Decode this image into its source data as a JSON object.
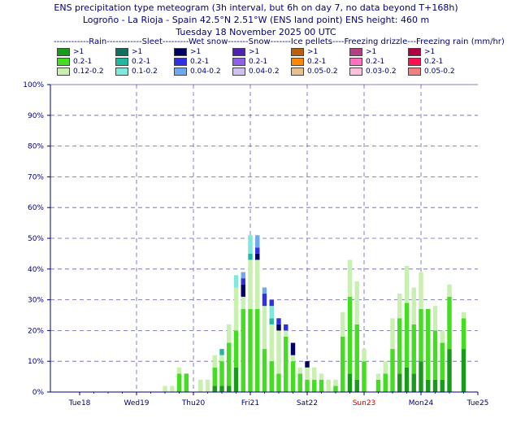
{
  "titles": {
    "line1": "ENS precipitation type meteogram (3h interval, but 6h on day 7, no data beyond T+168h)",
    "line2": "Logroño - La Rioja - Spain 42.5°N 2.51°W (ENS land point) ENS height: 460 m",
    "line3": "Tuesday 18 November 2025 00 UTC"
  },
  "legend": {
    "header": "------------Rain------------Sleet---------Wet snow-------Snow-------Ice pellets----Freezing drizzle---Freezing rain (mm/hr)",
    "columns": [
      {
        "name": "rain",
        "items": [
          {
            "label": ">1",
            "color": "#1a9a1a"
          },
          {
            "label": "0.2-1",
            "color": "#44dd22"
          },
          {
            "label": "0.12-0.2",
            "color": "#c8f0b0"
          }
        ]
      },
      {
        "name": "sleet",
        "items": [
          {
            "label": ">1",
            "color": "#0f7060"
          },
          {
            "label": "0.2-1",
            "color": "#22b8a0"
          },
          {
            "label": "0.1-0.2",
            "color": "#80e8d8"
          }
        ]
      },
      {
        "name": "wet-snow",
        "items": [
          {
            "label": ">1",
            "color": "#000060"
          },
          {
            "label": "0.2-1",
            "color": "#3030e0"
          },
          {
            "label": "0.04-0.2",
            "color": "#70a8f0"
          }
        ]
      },
      {
        "name": "snow",
        "items": [
          {
            "label": ">1",
            "color": "#5020b0"
          },
          {
            "label": "0.2-1",
            "color": "#9060e8"
          },
          {
            "label": "0.04-0.2",
            "color": "#d0c0f0"
          }
        ]
      },
      {
        "name": "ice-pellets",
        "items": [
          {
            "label": ">1",
            "color": "#b86010"
          },
          {
            "label": "0.2-1",
            "color": "#ff8800"
          },
          {
            "label": "0.05-0.2",
            "color": "#e8c090"
          }
        ]
      },
      {
        "name": "freezing-drizzle",
        "items": [
          {
            "label": ">1",
            "color": "#b04080"
          },
          {
            "label": "0.2-1",
            "color": "#ff70c0"
          },
          {
            "label": "0.03-0.2",
            "color": "#ffc0e0"
          }
        ]
      },
      {
        "name": "freezing-rain",
        "items": [
          {
            "label": ">1",
            "color": "#b00040"
          },
          {
            "label": "0.2-1",
            "color": "#ff1050"
          },
          {
            "label": "0.05-0.2",
            "color": "#f08080"
          }
        ]
      }
    ]
  },
  "chart_data": {
    "type": "bar",
    "stacked": true,
    "ylim": [
      0,
      100
    ],
    "yticks": [
      "0%",
      "10%",
      "20%",
      "30%",
      "40%",
      "50%",
      "60%",
      "70%",
      "80%",
      "90%",
      "100%"
    ],
    "xlim_hours": [
      0,
      168
    ],
    "day_labels": [
      {
        "label": "Tue18",
        "hour": 0,
        "sunday": false
      },
      {
        "label": "Wed19",
        "hour": 24,
        "sunday": false
      },
      {
        "label": "Thu20",
        "hour": 48,
        "sunday": false
      },
      {
        "label": "Fri21",
        "hour": 72,
        "sunday": false
      },
      {
        "label": "Sat22",
        "hour": 96,
        "sunday": false
      },
      {
        "label": "Sun23",
        "hour": 120,
        "sunday": true
      },
      {
        "label": "Mon24",
        "hour": 144,
        "sunday": false
      },
      {
        "label": "Tue25",
        "hour": 168,
        "sunday": false
      }
    ],
    "series": [
      {
        "name": "Rain >1",
        "color": "#1a9a1a"
      },
      {
        "name": "Rain 0.2-1",
        "color": "#44dd22"
      },
      {
        "name": "Rain 0.12-0.2",
        "color": "#c8f0b0"
      },
      {
        "name": "Sleet >1",
        "color": "#0f7060"
      },
      {
        "name": "Sleet 0.2-1",
        "color": "#22b8a0"
      },
      {
        "name": "Sleet 0.1-0.2",
        "color": "#80e8d8"
      },
      {
        "name": "Wet snow >1",
        "color": "#000060"
      },
      {
        "name": "Wet snow 0.2-1",
        "color": "#3030e0"
      },
      {
        "name": "Wet snow 0.04-0.2",
        "color": "#70a8f0"
      }
    ],
    "bars": [
      {
        "hour": 36,
        "segments": [
          0,
          0,
          2
        ]
      },
      {
        "hour": 39,
        "segments": [
          0,
          0,
          2
        ]
      },
      {
        "hour": 42,
        "segments": [
          0,
          6,
          2
        ]
      },
      {
        "hour": 45,
        "segments": [
          0,
          6,
          0
        ]
      },
      {
        "hour": 51,
        "segments": [
          0,
          0,
          4
        ]
      },
      {
        "hour": 54,
        "segments": [
          0,
          0,
          4
        ]
      },
      {
        "hour": 57,
        "segments": [
          2,
          6,
          4
        ]
      },
      {
        "hour": 60,
        "segments": [
          2,
          8,
          2,
          0,
          2
        ]
      },
      {
        "hour": 63,
        "segments": [
          2,
          14,
          6,
          0,
          0,
          0,
          0,
          0,
          0
        ]
      },
      {
        "hour": 66,
        "segments": [
          8,
          12,
          14,
          0,
          0,
          4
        ]
      },
      {
        "hour": 69,
        "segments": [
          0,
          27,
          4,
          0,
          0,
          0,
          4,
          2,
          2
        ]
      },
      {
        "hour": 72,
        "segments": [
          0,
          27,
          16,
          0,
          2,
          6
        ]
      },
      {
        "hour": 75,
        "segments": [
          0,
          27,
          16,
          0,
          0,
          0,
          2,
          2,
          4
        ]
      },
      {
        "hour": 78,
        "segments": [
          0,
          14,
          14,
          0,
          0,
          0,
          0,
          4,
          2
        ]
      },
      {
        "hour": 81,
        "segments": [
          0,
          10,
          12,
          0,
          2,
          4,
          0,
          2,
          0
        ]
      },
      {
        "hour": 84,
        "segments": [
          0,
          6,
          14,
          0,
          0,
          0,
          2,
          2,
          0
        ]
      },
      {
        "hour": 87,
        "segments": [
          0,
          18,
          2,
          0,
          0,
          0,
          0,
          2,
          0
        ]
      },
      {
        "hour": 90,
        "segments": [
          0,
          10,
          2,
          0,
          0,
          0,
          4,
          0,
          0
        ]
      },
      {
        "hour": 93,
        "segments": [
          0,
          6,
          2
        ]
      },
      {
        "hour": 96,
        "segments": [
          0,
          4,
          4,
          0,
          0,
          0,
          2
        ]
      },
      {
        "hour": 99,
        "segments": [
          0,
          4,
          4
        ]
      },
      {
        "hour": 102,
        "segments": [
          0,
          4,
          2
        ]
      },
      {
        "hour": 105,
        "segments": [
          0,
          0,
          4
        ]
      },
      {
        "hour": 108,
        "segments": [
          0,
          2,
          2
        ]
      },
      {
        "hour": 111,
        "segments": [
          0,
          18,
          8
        ]
      },
      {
        "hour": 114,
        "segments": [
          6,
          25,
          12
        ]
      },
      {
        "hour": 117,
        "segments": [
          4,
          18,
          14
        ]
      },
      {
        "hour": 120,
        "segments": [
          0,
          10,
          4
        ]
      },
      {
        "hour": 126,
        "segments": [
          0,
          4,
          2
        ]
      },
      {
        "hour": 129,
        "segments": [
          0,
          6,
          4
        ]
      },
      {
        "hour": 132,
        "segments": [
          0,
          14,
          10
        ]
      },
      {
        "hour": 135,
        "segments": [
          6,
          18,
          8
        ]
      },
      {
        "hour": 138,
        "segments": [
          8,
          21,
          12
        ]
      },
      {
        "hour": 141,
        "segments": [
          6,
          16,
          12
        ]
      },
      {
        "hour": 144,
        "segments": [
          10,
          17,
          12
        ]
      },
      {
        "hour": 147,
        "segments": [
          4,
          23,
          0
        ]
      },
      {
        "hour": 150,
        "segments": [
          4,
          16,
          8
        ]
      },
      {
        "hour": 153,
        "segments": [
          4,
          12,
          4
        ]
      },
      {
        "hour": 156,
        "segments": [
          14,
          17,
          4
        ]
      },
      {
        "hour": 162,
        "segments": [
          14,
          10,
          2
        ]
      }
    ]
  }
}
